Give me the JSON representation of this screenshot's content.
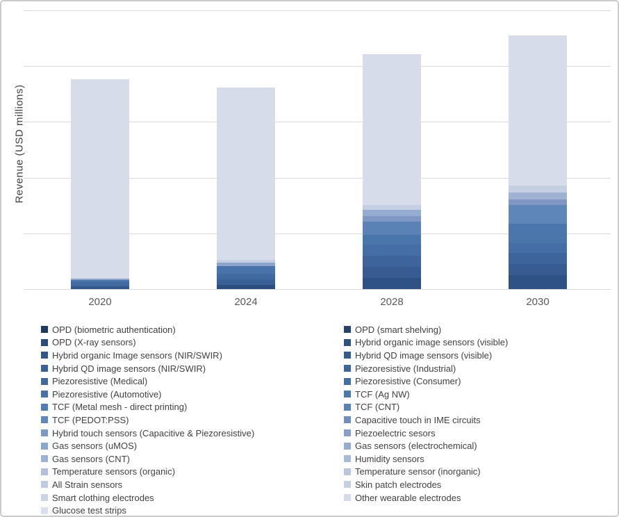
{
  "figure": {
    "ylabel": "Revenue (USD millions)"
  },
  "chart_data": {
    "type": "bar",
    "stacked": true,
    "title": "",
    "xlabel": "",
    "ylabel": "Revenue (USD millions)",
    "categories": [
      "2020",
      "2024",
      "2028",
      "2030"
    ],
    "y_axis": {
      "numeric_tick_labels_visible": false,
      "gridline_count": 6,
      "units_note": "y tick values are not printed in the figure; segment values below are estimated in gridline-interval units (1 unit = one horizontal gridline spacing)"
    },
    "legend_position": "bottom",
    "legend_columns": 2,
    "grid": true,
    "bar_color_default": "#D6DCEA",
    "series_stack_order": [
      {
        "name": "OPD (biometric authentication)",
        "color": "#1F3864"
      },
      {
        "name": "OPD (smart shelving)",
        "color": "#25426F"
      },
      {
        "name": "OPD (X-ray sensors)",
        "color": "#2A4C7D"
      },
      {
        "name": "Hybrid organic image sensors (visible)",
        "color": "#2E5183"
      },
      {
        "name": "Hybrid organic Image sensors (NIR/SWIR)",
        "color": "#32568A"
      },
      {
        "name": "Hybrid QD image sensors (visible)",
        "color": "#365B90"
      },
      {
        "name": "Hybrid QD image sensors (NIR/SWIR)",
        "color": "#3A6096"
      },
      {
        "name": "Piezoresistive (Industrial)",
        "color": "#3D659C"
      },
      {
        "name": "Piezoresistive (Medical)",
        "color": "#4169A0"
      },
      {
        "name": "Piezoresistive (Consumer)",
        "color": "#446EA5"
      },
      {
        "name": "Piezoresistive (Automotive)",
        "color": "#4772A9"
      },
      {
        "name": "TCF (Ag NW)",
        "color": "#4B77AE"
      },
      {
        "name": "TCF (Metal mesh - direct printing)",
        "color": "#4F7CB3"
      },
      {
        "name": "TCF (CNT)",
        "color": "#5781B7"
      },
      {
        "name": "TCF (PEDOT:PSS)",
        "color": "#5F87BB"
      },
      {
        "name": "Capacitive touch in IME circuits",
        "color": "#708DC0"
      },
      {
        "name": "Hybrid touch sensors (Capacitive & Piezoresistive)",
        "color": "#7E98C6"
      },
      {
        "name": "Piezoelectric sesors",
        "color": "#869EC9"
      },
      {
        "name": "Gas sensors (uMOS)",
        "color": "#8DA5CD"
      },
      {
        "name": "Gas sensors (electrochemical)",
        "color": "#95ABD1"
      },
      {
        "name": "Gas sensors (CNT)",
        "color": "#9EB2D5"
      },
      {
        "name": "Humidity sensors",
        "color": "#A8B9D9"
      },
      {
        "name": "Temperature sensors (organic)",
        "color": "#B2C0DC"
      },
      {
        "name": "Temperature sensor (inorganic)",
        "color": "#B8C5DF"
      },
      {
        "name": "All Strain sensors",
        "color": "#BFCBE2"
      },
      {
        "name": "Skin patch electrodes",
        "color": "#C6D0E5"
      },
      {
        "name": "Smart clothing electrodes",
        "color": "#CCD5E8"
      },
      {
        "name": "Other wearable electrodes",
        "color": "#D3DAEA"
      },
      {
        "name": "Glucose test strips",
        "color": "#D9DFEE"
      }
    ],
    "bars": [
      {
        "category": "2020",
        "total_units": 3.77,
        "segments": [
          {
            "group": "image sensors / piezoresistive (dark blues)",
            "color": "#33578B",
            "units": 0.05
          },
          {
            "group": "piezoresistive / TCF",
            "color": "#416AA1",
            "units": 0.075
          },
          {
            "group": "TCF / touch",
            "color": "#4873AB",
            "units": 0.037
          },
          {
            "group": "gas / humidity / temperature",
            "color": "#8CA4CC",
            "units": 0.025
          },
          {
            "group": "wearable electrodes + glucose test strips",
            "color": "#D6DCEA",
            "units": 3.578
          }
        ]
      },
      {
        "category": "2024",
        "total_units": 3.62,
        "segments": [
          {
            "group": "OPD / image sensors",
            "color": "#2C4E7F",
            "units": 0.075
          },
          {
            "group": "piezoresistive",
            "color": "#3A6197",
            "units": 0.1
          },
          {
            "group": "piezoresistive / TCF",
            "color": "#416AA1",
            "units": 0.1
          },
          {
            "group": "TCF / touch",
            "color": "#4873AB",
            "units": 0.137
          },
          {
            "group": "gas / humidity / temperature",
            "color": "#8CA4CC",
            "units": 0.062
          },
          {
            "group": "strain / skin patch",
            "color": "#C6D0E5",
            "units": 0.05
          },
          {
            "group": "wearable electrodes + glucose test strips",
            "color": "#D6DCEA",
            "units": 3.092
          }
        ]
      },
      {
        "category": "2028",
        "total_units": 4.22,
        "segments": [
          {
            "group": "OPD / image sensors",
            "color": "#2F5285",
            "units": 0.2
          },
          {
            "group": "image sensors",
            "color": "#365C91",
            "units": 0.2
          },
          {
            "group": "piezoresistive",
            "color": "#3D659C",
            "units": 0.2
          },
          {
            "group": "piezoresistive",
            "color": "#446EA5",
            "units": 0.2
          },
          {
            "group": "TCF",
            "color": "#4B76AC",
            "units": 0.175
          },
          {
            "group": "TCF / touch",
            "color": "#5A82B5",
            "units": 0.237
          },
          {
            "group": "piezoelectric / gas",
            "color": "#7E97C5",
            "units": 0.1
          },
          {
            "group": "gas / humidity",
            "color": "#95ABD0",
            "units": 0.112
          },
          {
            "group": "temperature / strain / skin patch",
            "color": "#C4CFE4",
            "units": 0.087
          },
          {
            "group": "wearable electrodes + glucose test strips",
            "color": "#D6DCEA",
            "units": 2.706
          }
        ]
      },
      {
        "category": "2030",
        "total_units": 4.55,
        "segments": [
          {
            "group": "OPD / image sensors",
            "color": "#2F5285",
            "units": 0.249
          },
          {
            "group": "image sensors",
            "color": "#365C91",
            "units": 0.2
          },
          {
            "group": "piezoresistive",
            "color": "#3D659C",
            "units": 0.2
          },
          {
            "group": "piezoresistive",
            "color": "#446EA5",
            "units": 0.175
          },
          {
            "group": "TCF",
            "color": "#4B76AC",
            "units": 0.349
          },
          {
            "group": "TCF / touch",
            "color": "#5E86B8",
            "units": 0.337
          },
          {
            "group": "piezoelectric / gas",
            "color": "#8197C3",
            "units": 0.1
          },
          {
            "group": "gas / humidity",
            "color": "#9FB2D3",
            "units": 0.125
          },
          {
            "group": "temperature / strain / skin patch",
            "color": "#C4CFE4",
            "units": 0.125
          },
          {
            "group": "wearable electrodes + glucose test strips",
            "color": "#D6DCEA",
            "units": 2.693
          }
        ]
      }
    ]
  },
  "legend": {
    "columns": [
      {
        "items": [
          {
            "label": "OPD (biometric authentication)",
            "color": "#1F3864"
          },
          {
            "label": "OPD (X-ray sensors)",
            "color": "#2A4C7D"
          },
          {
            "label": "Hybrid organic Image sensors (NIR/SWIR)",
            "color": "#32568A"
          },
          {
            "label": "Hybrid QD image sensors (NIR/SWIR)",
            "color": "#3A6096"
          },
          {
            "label": "Piezoresistive (Medical)",
            "color": "#4169A0"
          },
          {
            "label": "Piezoresistive (Automotive)",
            "color": "#4772A9"
          },
          {
            "label": "TCF (Metal mesh - direct printing)",
            "color": "#4F7CB3"
          },
          {
            "label": "TCF (PEDOT:PSS)",
            "color": "#5F87BB"
          },
          {
            "label": "Hybrid touch sensors (Capacitive & Piezoresistive)",
            "color": "#7E98C6"
          },
          {
            "label": "Gas sensors (uMOS)",
            "color": "#8DA5CD"
          },
          {
            "label": "Gas sensors (CNT)",
            "color": "#9EB2D5"
          },
          {
            "label": "Temperature sensors (organic)",
            "color": "#B2C0DC"
          },
          {
            "label": "All Strain sensors",
            "color": "#BFCBE2"
          },
          {
            "label": "Smart clothing electrodes",
            "color": "#CCD5E8"
          },
          {
            "label": "Glucose test strips",
            "color": "#D9DFEE"
          }
        ]
      },
      {
        "items": [
          {
            "label": "OPD (smart shelving)",
            "color": "#25426F"
          },
          {
            "label": "Hybrid organic image sensors (visible)",
            "color": "#2E5183"
          },
          {
            "label": "Hybrid QD image sensors (visible)",
            "color": "#365B90"
          },
          {
            "label": "Piezoresistive (Industrial)",
            "color": "#3D659C"
          },
          {
            "label": "Piezoresistive (Consumer)",
            "color": "#446EA5"
          },
          {
            "label": "TCF (Ag NW)",
            "color": "#4B77AE"
          },
          {
            "label": "TCF (CNT)",
            "color": "#5781B7"
          },
          {
            "label": "Capacitive touch in IME circuits",
            "color": "#708DC0"
          },
          {
            "label": "Piezoelectric sesors",
            "color": "#869EC9"
          },
          {
            "label": "Gas sensors (electrochemical)",
            "color": "#95ABD1"
          },
          {
            "label": "Humidity sensors",
            "color": "#A8B9D9"
          },
          {
            "label": "Temperature sensor (inorganic)",
            "color": "#B8C5DF"
          },
          {
            "label": "Skin patch electrodes",
            "color": "#C6D0E5"
          },
          {
            "label": "Other wearable electrodes",
            "color": "#D3DAEA"
          }
        ]
      }
    ]
  }
}
